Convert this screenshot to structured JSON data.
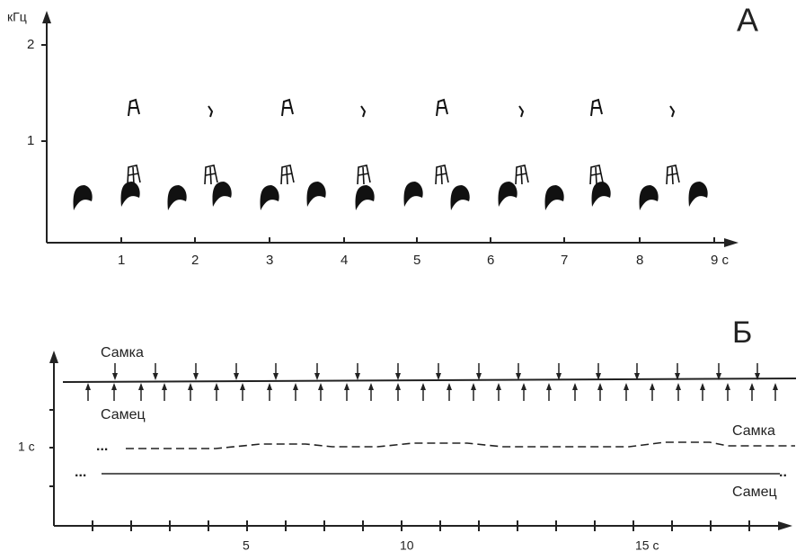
{
  "panel_a": {
    "label": "А",
    "y_unit": "кГц",
    "y_ticks": [
      "1",
      "2"
    ],
    "x_ticks": [
      "1",
      "2",
      "3",
      "4",
      "5",
      "6",
      "7",
      "8",
      "9 с"
    ]
  },
  "panel_b": {
    "label": "Б",
    "female_arrows": "Самка",
    "male_arrows": "Самец",
    "y_tick": "1 с",
    "x_ticks": [
      "5",
      "10",
      "15 с"
    ],
    "female_line": "Самка",
    "male_line": "Самец"
  }
}
